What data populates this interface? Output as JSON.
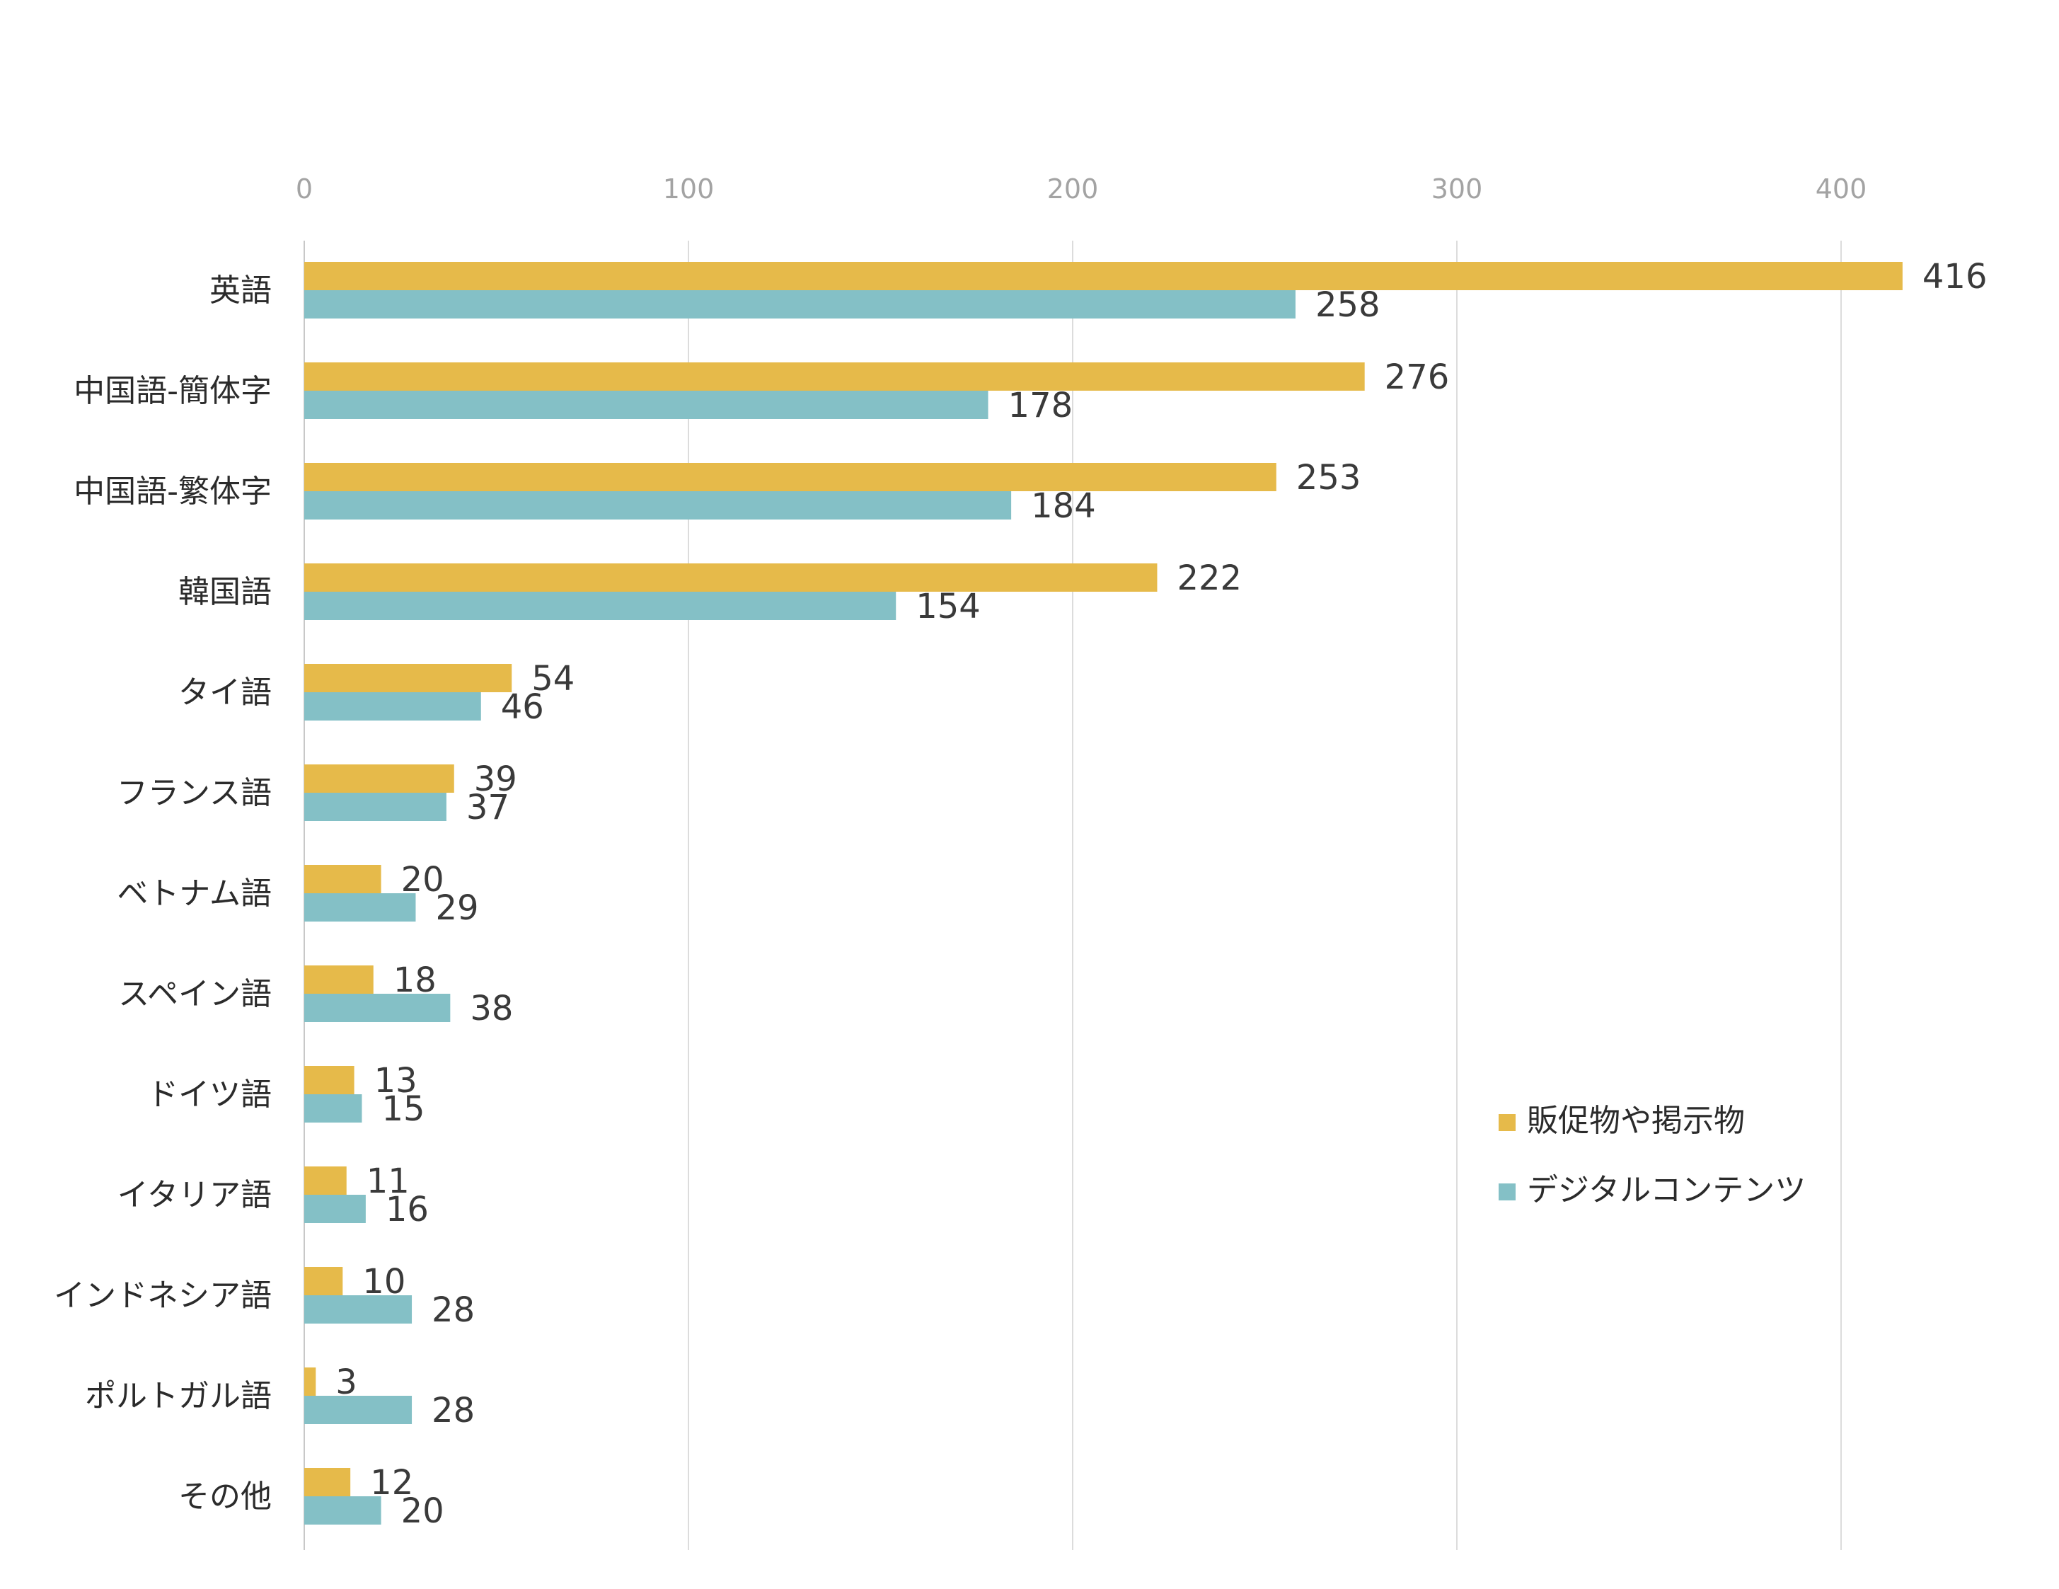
{
  "chart_data": {
    "type": "bar",
    "orientation": "horizontal",
    "categories": [
      "英語",
      "中国語-簡体字",
      "中国語-繁体字",
      "韓国語",
      "タイ語",
      "フランス語",
      "ベトナム語",
      "スペイン語",
      "ドイツ語",
      "イタリア語",
      "インドネシア語",
      "ポルトガル語",
      "その他"
    ],
    "series": [
      {
        "name": "販促物や掲示物",
        "color": "#E6BA4A",
        "values": [
          416,
          276,
          253,
          222,
          54,
          39,
          20,
          18,
          13,
          11,
          10,
          3,
          12
        ]
      },
      {
        "name": "デジタルコンテンツ",
        "color": "#84C0C6",
        "values": [
          258,
          178,
          184,
          154,
          46,
          37,
          29,
          38,
          15,
          16,
          28,
          28,
          20
        ]
      }
    ],
    "xlim": [
      0,
      430
    ],
    "ticks": [
      "0",
      "100",
      "200",
      "300",
      "400"
    ],
    "grid": true,
    "legend_position": "right",
    "data_labels": true
  }
}
